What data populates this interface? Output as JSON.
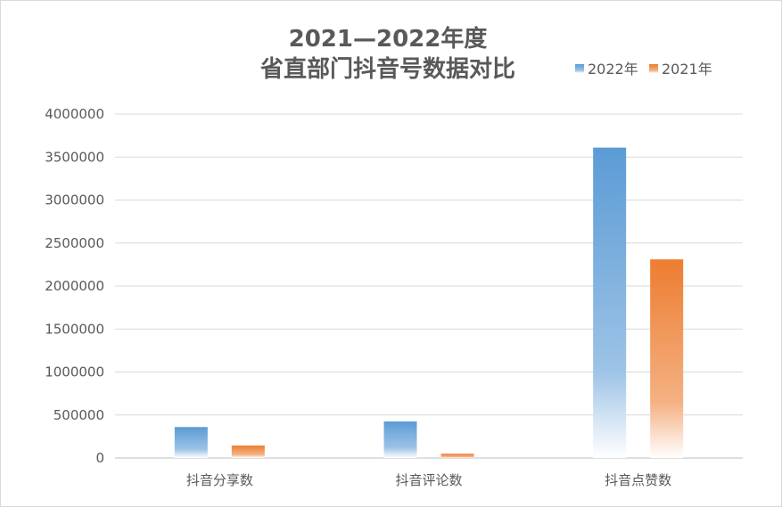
{
  "chart_data": {
    "type": "bar",
    "title_line1": "2021—2022年度",
    "title_line2": "省直部门抖音号数据对比",
    "categories": [
      "抖音分享数",
      "抖音评论数",
      "抖音点赞数"
    ],
    "series": [
      {
        "name": "2022年",
        "values": [
          360000,
          425000,
          3610000
        ]
      },
      {
        "name": "2021年",
        "values": [
          145000,
          50000,
          2310000
        ]
      }
    ],
    "ylim": [
      0,
      4000000
    ],
    "yticks": [
      0,
      500000,
      1000000,
      1500000,
      2000000,
      2500000,
      3000000,
      3500000,
      4000000
    ],
    "ytick_labels": [
      "0",
      "500000",
      "1000000",
      "1500000",
      "2000000",
      "2500000",
      "3000000",
      "3500000",
      "4000000"
    ],
    "grid": true,
    "legend_position": "top-right",
    "colors": {
      "2022年": "#5b9bd5",
      "2021年": "#ed7d31",
      "grid": "#d9d9d9",
      "axis": "#bfbfbf",
      "text": "#595959"
    }
  }
}
